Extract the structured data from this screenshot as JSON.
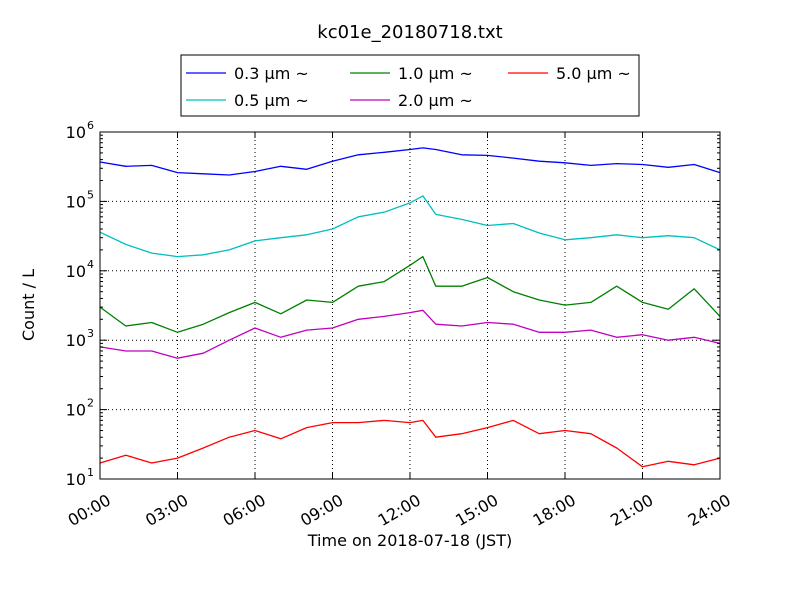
{
  "chart_data": {
    "type": "line",
    "title": "kc01e_20180718.txt",
    "xlabel": "Time on 2018-07-18 (JST)",
    "ylabel": "Count / L",
    "y_scale": "log",
    "ylim": [
      10,
      1000000
    ],
    "xlim": [
      "00:00",
      "24:00"
    ],
    "x_tick_labels": [
      "00:00",
      "03:00",
      "06:00",
      "09:00",
      "12:00",
      "15:00",
      "18:00",
      "21:00",
      "24:00"
    ],
    "y_tick_labels": [
      {
        "base": "10",
        "exp": "1"
      },
      {
        "base": "10",
        "exp": "2"
      },
      {
        "base": "10",
        "exp": "3"
      },
      {
        "base": "10",
        "exp": "4"
      },
      {
        "base": "10",
        "exp": "5"
      },
      {
        "base": "10",
        "exp": "6"
      }
    ],
    "grid": true,
    "legend_placement": "top-center",
    "x": [
      "00:00",
      "01:00",
      "02:00",
      "03:00",
      "04:00",
      "05:00",
      "06:00",
      "07:00",
      "08:00",
      "09:00",
      "10:00",
      "11:00",
      "12:00",
      "12:30",
      "13:00",
      "14:00",
      "15:00",
      "16:00",
      "17:00",
      "18:00",
      "19:00",
      "20:00",
      "21:00",
      "22:00",
      "23:00",
      "24:00"
    ],
    "series": [
      {
        "name": "0.3 μm ~",
        "color": "#0000ff",
        "values": [
          370000,
          320000,
          330000,
          260000,
          250000,
          240000,
          270000,
          320000,
          290000,
          380000,
          470000,
          510000,
          560000,
          590000,
          560000,
          470000,
          460000,
          420000,
          380000,
          360000,
          330000,
          350000,
          340000,
          310000,
          340000,
          260000
        ]
      },
      {
        "name": "0.5 μm ~",
        "color": "#00bfbf",
        "values": [
          36000,
          24000,
          18000,
          16000,
          17000,
          20000,
          27000,
          30000,
          33000,
          40000,
          60000,
          70000,
          95000,
          120000,
          65000,
          55000,
          45000,
          48000,
          35000,
          28000,
          30000,
          33000,
          30000,
          32000,
          30000,
          20000
        ]
      },
      {
        "name": "1.0 μm ~",
        "color": "#008000",
        "values": [
          3000,
          1600,
          1800,
          1300,
          1700,
          2500,
          3500,
          2400,
          3800,
          3500,
          6000,
          7000,
          12000,
          16000,
          6000,
          6000,
          8000,
          5000,
          3800,
          3200,
          3500,
          6000,
          3500,
          2800,
          5500,
          2200
        ]
      },
      {
        "name": "2.0 μm ~",
        "color": "#bf00bf",
        "values": [
          800,
          700,
          700,
          550,
          650,
          1000,
          1500,
          1100,
          1400,
          1500,
          2000,
          2200,
          2500,
          2700,
          1700,
          1600,
          1800,
          1700,
          1300,
          1300,
          1400,
          1100,
          1200,
          1000,
          1100,
          900
        ]
      },
      {
        "name": "5.0 μm ~",
        "color": "#ff0000",
        "values": [
          17,
          22,
          17,
          20,
          28,
          40,
          50,
          38,
          55,
          65,
          65,
          70,
          65,
          70,
          40,
          45,
          55,
          70,
          45,
          50,
          45,
          28,
          15,
          18,
          16,
          20
        ]
      }
    ]
  }
}
